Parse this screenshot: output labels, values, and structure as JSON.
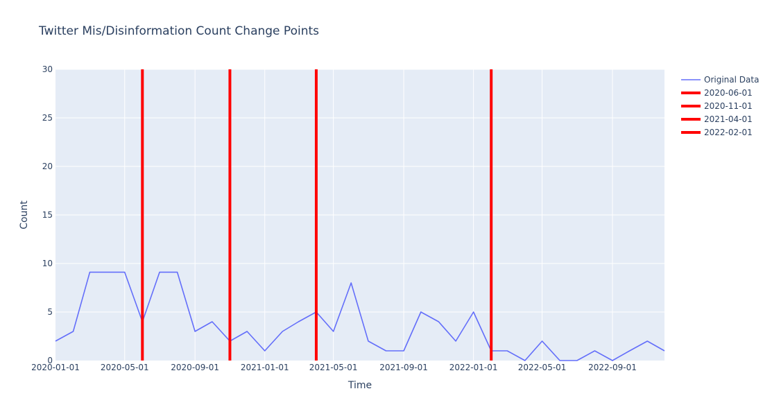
{
  "chart_data": {
    "type": "line",
    "title": "Twitter Mis/Disinformation Count Change Points",
    "xlabel": "Time",
    "ylabel": "Count",
    "ylim": [
      0,
      30
    ],
    "xlim": [
      "2020-01-01",
      "2022-12-01"
    ],
    "grid": true,
    "legend_position": "top-right, outside plot",
    "x_tick_labels": [
      "2020-01-01",
      "2020-05-01",
      "2020-09-01",
      "2021-01-01",
      "2021-05-01",
      "2021-09-01",
      "2022-01-01",
      "2022-05-01",
      "2022-09-01"
    ],
    "y_tick_labels": [
      "0",
      "5",
      "10",
      "15",
      "20",
      "25",
      "30"
    ],
    "series": [
      {
        "name": "Original Data",
        "color": "#636efa",
        "x": [
          "2020-01-01",
          "2020-02-01",
          "2020-03-01",
          "2020-04-01",
          "2020-05-01",
          "2020-06-01",
          "2020-07-01",
          "2020-08-01",
          "2020-09-01",
          "2020-10-01",
          "2020-11-01",
          "2020-12-01",
          "2021-01-01",
          "2021-02-01",
          "2021-03-01",
          "2021-04-01",
          "2021-05-01",
          "2021-06-01",
          "2021-07-01",
          "2021-08-01",
          "2021-09-01",
          "2021-10-01",
          "2021-11-01",
          "2021-12-01",
          "2022-01-01",
          "2022-02-01",
          "2022-03-01",
          "2022-04-01",
          "2022-05-01",
          "2022-06-01",
          "2022-07-01",
          "2022-08-01",
          "2022-09-01",
          "2022-10-01",
          "2022-11-01",
          "2022-12-01"
        ],
        "y": [
          2,
          3,
          9.1,
          9.1,
          9.1,
          4,
          9.1,
          9.1,
          3,
          4,
          2,
          3,
          1,
          3,
          4,
          5,
          3,
          8,
          2,
          1,
          1,
          5,
          4,
          2,
          5,
          1,
          1,
          0,
          2,
          0,
          0,
          1,
          0,
          1,
          2,
          1
        ]
      }
    ],
    "change_points": [
      {
        "name": "2020-06-01",
        "x": "2020-06-01",
        "color": "#ff0000"
      },
      {
        "name": "2020-11-01",
        "x": "2020-11-01",
        "color": "#ff0000"
      },
      {
        "name": "2021-04-01",
        "x": "2021-04-01",
        "color": "#ff0000"
      },
      {
        "name": "2022-02-01",
        "x": "2022-02-01",
        "color": "#ff0000"
      }
    ],
    "colors": {
      "plot_background": "#e5ecf6",
      "grid": "#ffffff",
      "text": "#2a3f5f"
    }
  }
}
